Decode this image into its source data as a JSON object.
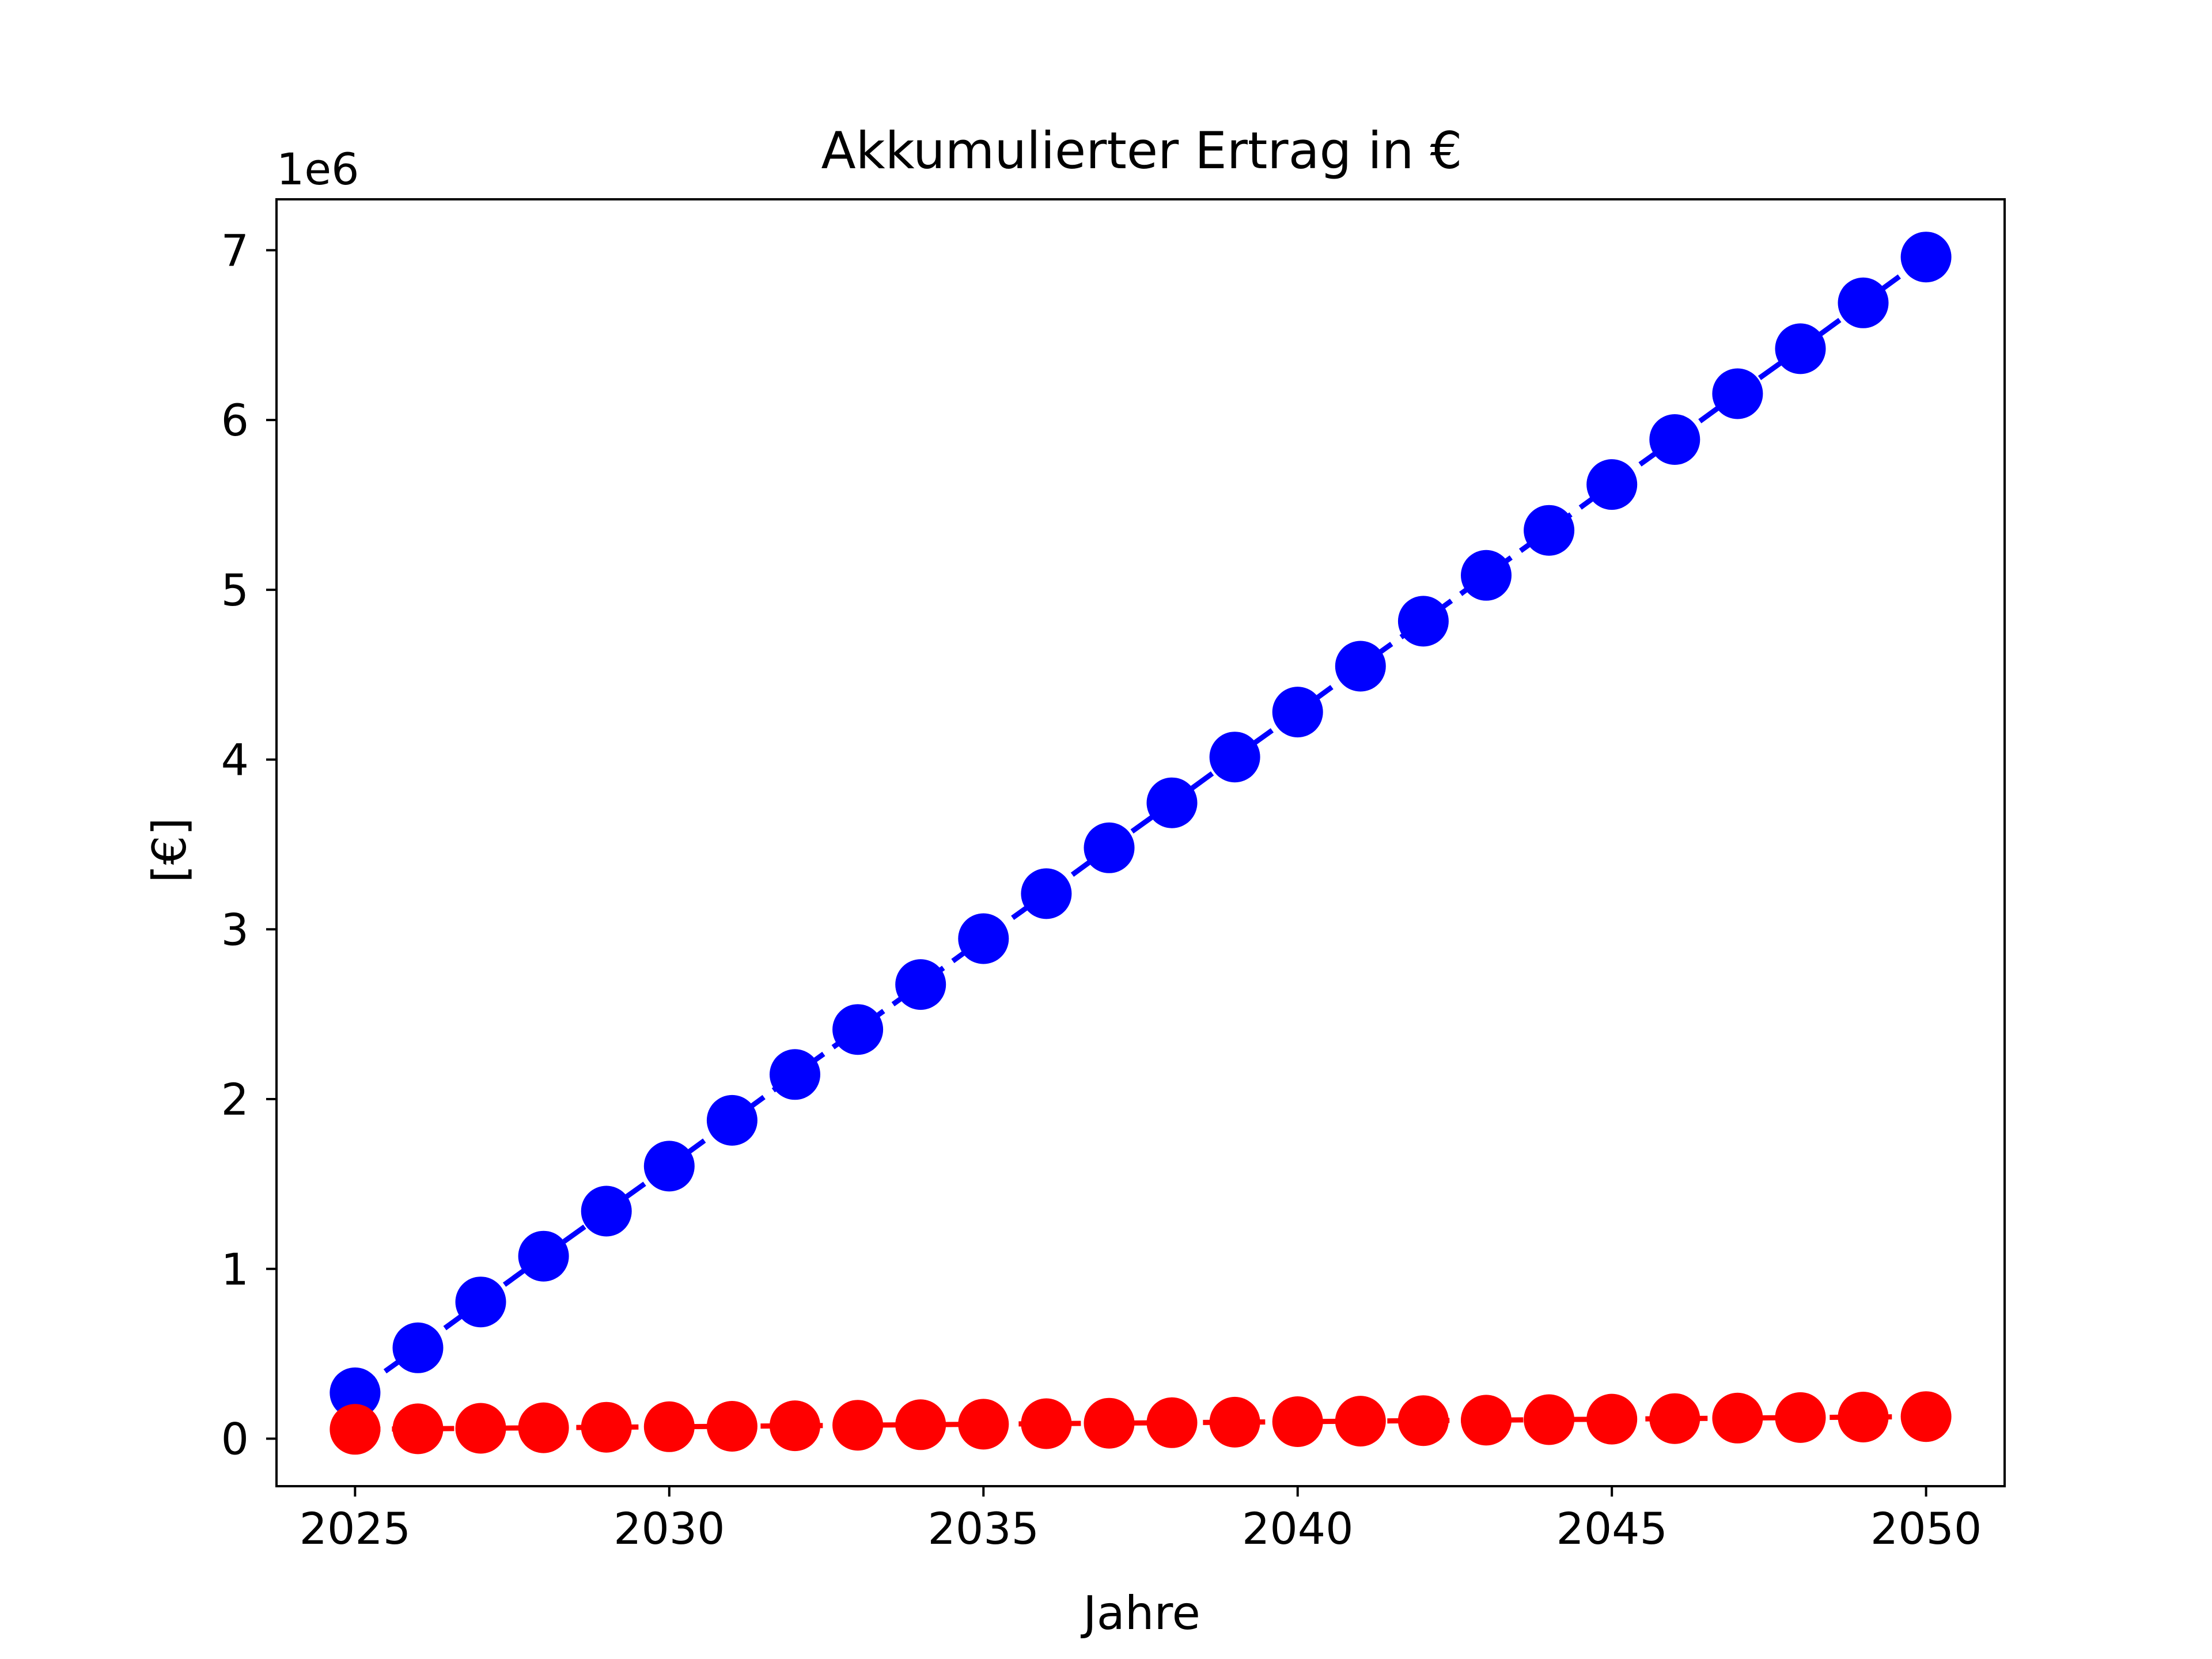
{
  "chart_data": {
    "type": "line",
    "title": "Akkumulierter Ertrag in €",
    "xlabel": "Jahre",
    "ylabel": "[€]",
    "y_offset_label": "1e6",
    "xlim": [
      2023.75,
      2051.25
    ],
    "ylim": [
      -280000,
      7300000
    ],
    "x_ticks": [
      2025,
      2030,
      2035,
      2040,
      2045,
      2050
    ],
    "x_tick_labels": [
      "2025",
      "2030",
      "2035",
      "2040",
      "2045",
      "2050"
    ],
    "y_ticks": [
      0,
      1000000,
      2000000,
      3000000,
      4000000,
      5000000,
      6000000,
      7000000
    ],
    "y_tick_labels": [
      "0",
      "1",
      "2",
      "3",
      "4",
      "5",
      "6",
      "7"
    ],
    "grid": false,
    "x": [
      2025,
      2026,
      2027,
      2028,
      2029,
      2030,
      2031,
      2032,
      2033,
      2034,
      2035,
      2036,
      2037,
      2038,
      2039,
      2040,
      2041,
      2042,
      2043,
      2044,
      2045,
      2046,
      2047,
      2048,
      2049,
      2050
    ],
    "series": [
      {
        "color": "#0000ff",
        "line_style": "dashed",
        "marker": "circle",
        "values": [
          270000,
          535000,
          805000,
          1075000,
          1340000,
          1605000,
          1875000,
          2145000,
          2410000,
          2675000,
          2945000,
          3210000,
          3480000,
          3745000,
          4015000,
          4280000,
          4550000,
          4815000,
          5085000,
          5350000,
          5620000,
          5885000,
          6155000,
          6420000,
          6690000,
          6960000
        ]
      },
      {
        "color": "#ff0000",
        "line_style": "dashed",
        "marker": "circle",
        "values": [
          55000,
          58000,
          61000,
          64000,
          67000,
          70000,
          73000,
          76000,
          79000,
          82000,
          85000,
          88000,
          91000,
          94000,
          97000,
          100000,
          103000,
          106000,
          109000,
          112000,
          115000,
          118000,
          121000,
          124000,
          127000,
          130000
        ]
      }
    ]
  }
}
